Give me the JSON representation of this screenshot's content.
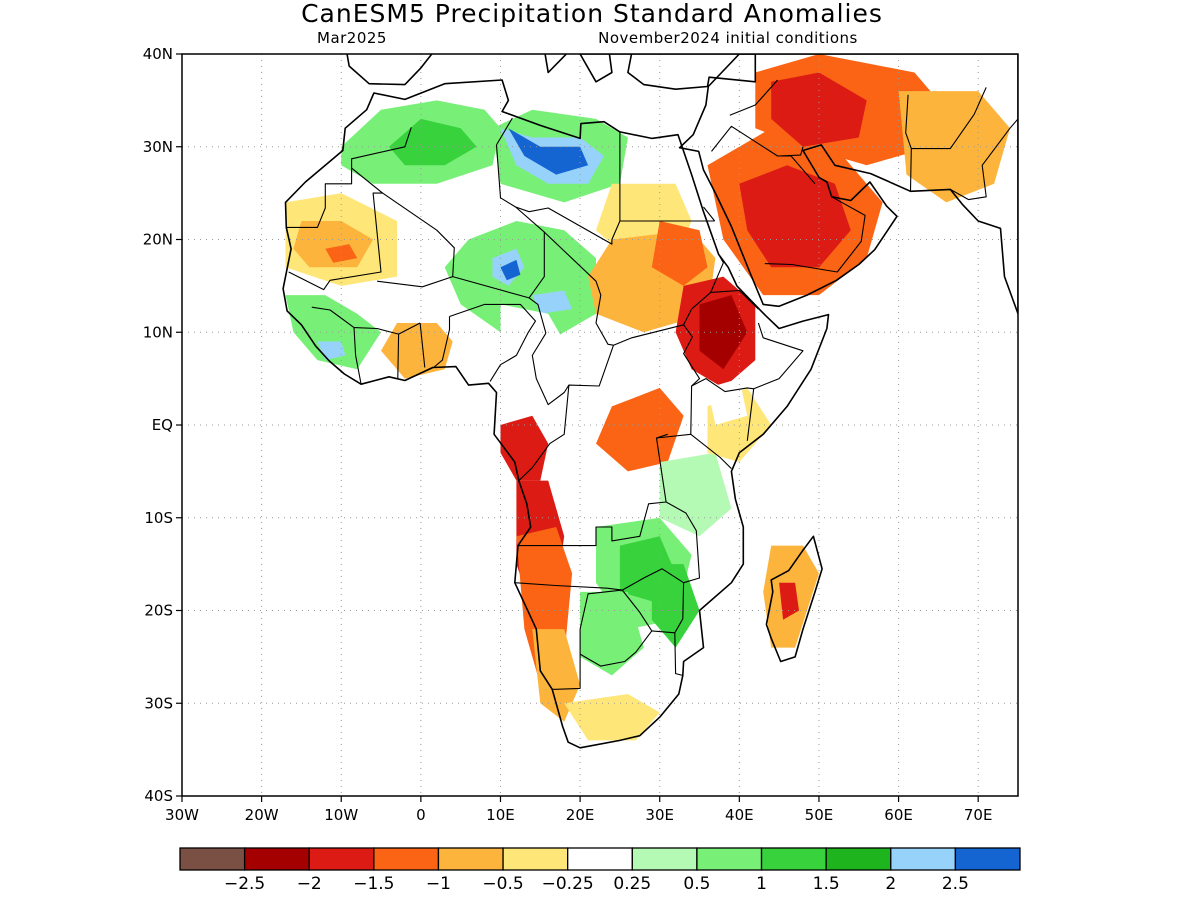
{
  "title": "CanESM5 Precipitation Standard Anomalies",
  "subtitle_left": "Mar2025",
  "subtitle_right": "November2024 initial conditions",
  "map": {
    "lon_range": [
      -30,
      75
    ],
    "lat_range": [
      -40,
      40
    ],
    "lon_ticks": [
      {
        "value": -30,
        "label": "30W"
      },
      {
        "value": -20,
        "label": "20W"
      },
      {
        "value": -10,
        "label": "10W"
      },
      {
        "value": 0,
        "label": "0"
      },
      {
        "value": 10,
        "label": "10E"
      },
      {
        "value": 20,
        "label": "20E"
      },
      {
        "value": 30,
        "label": "30E"
      },
      {
        "value": 40,
        "label": "40E"
      },
      {
        "value": 50,
        "label": "50E"
      },
      {
        "value": 60,
        "label": "60E"
      },
      {
        "value": 70,
        "label": "70E"
      }
    ],
    "lat_ticks": [
      {
        "value": 40,
        "label": "40N"
      },
      {
        "value": 30,
        "label": "30N"
      },
      {
        "value": 20,
        "label": "20N"
      },
      {
        "value": 10,
        "label": "10N"
      },
      {
        "value": 0,
        "label": "EQ"
      },
      {
        "value": -10,
        "label": "10S"
      },
      {
        "value": -20,
        "label": "20S"
      },
      {
        "value": -30,
        "label": "30S"
      },
      {
        "value": -40,
        "label": "40S"
      }
    ],
    "grid": true
  },
  "colorbar": {
    "colors": [
      "#7b5044",
      "#a50000",
      "#dc1c14",
      "#fa6414",
      "#fcb43c",
      "#ffe678",
      "#ffffff",
      "#b4fab4",
      "#78f078",
      "#37d23c",
      "#1eb41e",
      "#96d2fa",
      "#1464d2"
    ],
    "labels": [
      "-2.5",
      "-2",
      "-1.5",
      "-1",
      "-0.5",
      "-0.25",
      "0.25",
      "0.5",
      "1",
      "1.5",
      "2",
      "2.5"
    ]
  },
  "palette": {
    "deep_brown": "#7b5044",
    "dark_red": "#a50000",
    "red": "#dc1c14",
    "orange": "#fa6414",
    "light_orange": "#fcb43c",
    "yellow": "#ffe678",
    "white": "#ffffff",
    "light_green": "#b4fab4",
    "green": "#78f078",
    "mid_green": "#37d23c",
    "dark_green": "#1eb41e",
    "light_blue": "#96d2fa",
    "blue": "#1464d2"
  },
  "anomaly_regions": [
    {
      "name": "Morocco-Algeria",
      "level": "green",
      "coords": [
        [
          -10,
          30
        ],
        [
          -5,
          34
        ],
        [
          2,
          35
        ],
        [
          8,
          34
        ],
        [
          10,
          32
        ],
        [
          9,
          28
        ],
        [
          2,
          26
        ],
        [
          -6,
          26
        ],
        [
          -10,
          28
        ]
      ]
    },
    {
      "name": "Algeria-core",
      "level": "mid_green",
      "coords": [
        [
          -4,
          30
        ],
        [
          0,
          33
        ],
        [
          5,
          32
        ],
        [
          7,
          30
        ],
        [
          3,
          28
        ],
        [
          -2,
          28
        ]
      ]
    },
    {
      "name": "Libya-north",
      "level": "green",
      "coords": [
        [
          9,
          32
        ],
        [
          14,
          34
        ],
        [
          22,
          33
        ],
        [
          26,
          31
        ],
        [
          25,
          26
        ],
        [
          18,
          24
        ],
        [
          10,
          26
        ]
      ]
    },
    {
      "name": "Libya-blue",
      "level": "light_blue",
      "coords": [
        [
          10,
          32
        ],
        [
          14,
          31
        ],
        [
          20,
          31
        ],
        [
          23,
          29
        ],
        [
          21,
          26
        ],
        [
          16,
          26
        ],
        [
          12,
          28
        ]
      ]
    },
    {
      "name": "Libya-deepblue",
      "level": "blue",
      "coords": [
        [
          11,
          32
        ],
        [
          15,
          30
        ],
        [
          20,
          30
        ],
        [
          21,
          28
        ],
        [
          17,
          27
        ],
        [
          13,
          29
        ]
      ]
    },
    {
      "name": "Sahel-central-green",
      "level": "green",
      "coords": [
        [
          6,
          20
        ],
        [
          12,
          22
        ],
        [
          18,
          21
        ],
        [
          22,
          18
        ],
        [
          22,
          12
        ],
        [
          16,
          9
        ],
        [
          10,
          10
        ],
        [
          5,
          13
        ],
        [
          3,
          17
        ]
      ]
    },
    {
      "name": "Niger-blue",
      "level": "light_blue",
      "coords": [
        [
          9,
          18
        ],
        [
          12,
          19
        ],
        [
          13,
          17
        ],
        [
          11,
          15
        ],
        [
          9,
          16
        ]
      ]
    },
    {
      "name": "Niger-deepblue",
      "level": "blue",
      "coords": [
        [
          10,
          17
        ],
        [
          12,
          17.8
        ],
        [
          12.5,
          16.2
        ],
        [
          10.8,
          15.6
        ]
      ]
    },
    {
      "name": "Chad-blue",
      "level": "light_blue",
      "coords": [
        [
          14,
          14
        ],
        [
          18,
          14.5
        ],
        [
          19,
          12.5
        ],
        [
          15,
          12
        ]
      ]
    },
    {
      "name": "WestSahara-yellow",
      "level": "yellow",
      "coords": [
        [
          -17,
          24
        ],
        [
          -10,
          25
        ],
        [
          -3,
          22
        ],
        [
          -3,
          16
        ],
        [
          -10,
          15
        ],
        [
          -17,
          17
        ]
      ]
    },
    {
      "name": "Mauritania-orange",
      "level": "light_orange",
      "coords": [
        [
          -15,
          22
        ],
        [
          -10,
          22
        ],
        [
          -6,
          20
        ],
        [
          -8,
          17
        ],
        [
          -14,
          17
        ],
        [
          -16,
          19
        ]
      ]
    },
    {
      "name": "Mauritania-red",
      "level": "orange",
      "coords": [
        [
          -12,
          19
        ],
        [
          -9,
          19.5
        ],
        [
          -8,
          18
        ],
        [
          -11,
          17.5
        ]
      ]
    },
    {
      "name": "WestAfrica-green",
      "level": "green",
      "coords": [
        [
          -17,
          14
        ],
        [
          -12,
          14
        ],
        [
          -8,
          12
        ],
        [
          -5,
          10
        ],
        [
          -8,
          6
        ],
        [
          -13,
          7
        ],
        [
          -16,
          10
        ]
      ]
    },
    {
      "name": "SierraLeone-blue",
      "level": "light_blue",
      "coords": [
        [
          -13,
          9
        ],
        [
          -10,
          9
        ],
        [
          -9.5,
          7.5
        ],
        [
          -12,
          7
        ]
      ]
    },
    {
      "name": "Guinea-orange",
      "level": "light_orange",
      "coords": [
        [
          -3,
          11
        ],
        [
          2,
          11
        ],
        [
          4,
          9
        ],
        [
          3,
          6
        ],
        [
          -2,
          5
        ],
        [
          -5,
          8
        ]
      ]
    },
    {
      "name": "Egypt-Sudan-yellow",
      "level": "yellow",
      "coords": [
        [
          24,
          26
        ],
        [
          32,
          26
        ],
        [
          34,
          22
        ],
        [
          32,
          18
        ],
        [
          26,
          18
        ],
        [
          22,
          21
        ]
      ]
    },
    {
      "name": "Sudan-orange",
      "level": "light_orange",
      "coords": [
        [
          24,
          20
        ],
        [
          34,
          21
        ],
        [
          37,
          18
        ],
        [
          36,
          12
        ],
        [
          28,
          10
        ],
        [
          22,
          12
        ],
        [
          21,
          16
        ]
      ]
    },
    {
      "name": "EastSudan-orange",
      "level": "orange",
      "coords": [
        [
          30,
          22
        ],
        [
          35,
          21
        ],
        [
          36,
          17
        ],
        [
          33,
          15
        ],
        [
          29,
          17
        ]
      ]
    },
    {
      "name": "Ethiopia-red",
      "level": "red",
      "coords": [
        [
          33,
          15
        ],
        [
          38,
          16
        ],
        [
          42,
          13
        ],
        [
          42,
          7
        ],
        [
          38,
          4
        ],
        [
          34,
          6
        ],
        [
          32,
          10
        ]
      ]
    },
    {
      "name": "Ethiopia-darkred",
      "level": "dark_red",
      "coords": [
        [
          35,
          13
        ],
        [
          39,
          14
        ],
        [
          41,
          10
        ],
        [
          38,
          6
        ],
        [
          35,
          8
        ]
      ]
    },
    {
      "name": "Arabia-orange",
      "level": "orange",
      "coords": [
        [
          36,
          28
        ],
        [
          44,
          32
        ],
        [
          52,
          30
        ],
        [
          58,
          24
        ],
        [
          56,
          18
        ],
        [
          50,
          14
        ],
        [
          43,
          14
        ],
        [
          38,
          20
        ]
      ]
    },
    {
      "name": "Arabia-red",
      "level": "red",
      "coords": [
        [
          40,
          26
        ],
        [
          46,
          28
        ],
        [
          52,
          26
        ],
        [
          54,
          21
        ],
        [
          50,
          17
        ],
        [
          44,
          17
        ],
        [
          41,
          21
        ]
      ]
    },
    {
      "name": "Iraq-Iran-orange",
      "level": "orange",
      "coords": [
        [
          42,
          38
        ],
        [
          50,
          40
        ],
        [
          62,
          38
        ],
        [
          66,
          34
        ],
        [
          64,
          30
        ],
        [
          56,
          28
        ],
        [
          48,
          30
        ],
        [
          42,
          32
        ]
      ]
    },
    {
      "name": "Iraq-red",
      "level": "red",
      "coords": [
        [
          44,
          37
        ],
        [
          50,
          38
        ],
        [
          56,
          35
        ],
        [
          55,
          31
        ],
        [
          48,
          30
        ],
        [
          44,
          33
        ]
      ]
    },
    {
      "name": "Pakistan-orange",
      "level": "light_orange",
      "coords": [
        [
          60,
          36
        ],
        [
          70,
          36
        ],
        [
          74,
          32
        ],
        [
          72,
          26
        ],
        [
          66,
          24
        ],
        [
          61,
          27
        ]
      ]
    },
    {
      "name": "Congo-Basin-red",
      "level": "orange",
      "coords": [
        [
          24,
          2
        ],
        [
          30,
          4
        ],
        [
          33,
          1
        ],
        [
          31,
          -4
        ],
        [
          26,
          -5
        ],
        [
          22,
          -2
        ]
      ]
    },
    {
      "name": "Gabon-red",
      "level": "red",
      "coords": [
        [
          10,
          0
        ],
        [
          14,
          1
        ],
        [
          16,
          -2
        ],
        [
          15,
          -6
        ],
        [
          12,
          -6
        ],
        [
          10,
          -3
        ]
      ]
    },
    {
      "name": "Angola-red",
      "level": "red",
      "coords": [
        [
          12,
          -6
        ],
        [
          16,
          -6
        ],
        [
          18,
          -12
        ],
        [
          17,
          -18
        ],
        [
          14,
          -20
        ],
        [
          12,
          -15
        ]
      ]
    },
    {
      "name": "Angola-orange",
      "level": "orange",
      "coords": [
        [
          12,
          -12
        ],
        [
          17,
          -11
        ],
        [
          19,
          -16
        ],
        [
          18,
          -25
        ],
        [
          15,
          -28
        ],
        [
          13,
          -22
        ]
      ]
    },
    {
      "name": "Namibia-orange",
      "level": "light_orange",
      "coords": [
        [
          14,
          -22
        ],
        [
          18,
          -22
        ],
        [
          20,
          -28
        ],
        [
          18,
          -32
        ],
        [
          15,
          -30
        ]
      ]
    },
    {
      "name": "Zambia-green",
      "level": "green",
      "coords": [
        [
          22,
          -11
        ],
        [
          30,
          -10
        ],
        [
          34,
          -14
        ],
        [
          32,
          -21
        ],
        [
          26,
          -22
        ],
        [
          22,
          -17
        ]
      ]
    },
    {
      "name": "Zambia-midgreen",
      "level": "mid_green",
      "coords": [
        [
          25,
          -13
        ],
        [
          30,
          -12
        ],
        [
          32,
          -16
        ],
        [
          29,
          -19
        ],
        [
          25,
          -18
        ]
      ]
    },
    {
      "name": "Mozambique-green",
      "level": "mid_green",
      "coords": [
        [
          29,
          -15
        ],
        [
          33,
          -15
        ],
        [
          35,
          -20
        ],
        [
          32,
          -24
        ],
        [
          29,
          -21
        ]
      ]
    },
    {
      "name": "Tanzania-green",
      "level": "light_green",
      "coords": [
        [
          30,
          -4
        ],
        [
          37,
          -3
        ],
        [
          39,
          -9
        ],
        [
          35,
          -12
        ],
        [
          30,
          -10
        ]
      ]
    },
    {
      "name": "Botswana-green",
      "level": "green",
      "coords": [
        [
          20,
          -18
        ],
        [
          26,
          -18
        ],
        [
          28,
          -24
        ],
        [
          24,
          -27
        ],
        [
          20,
          -25
        ]
      ]
    },
    {
      "name": "SouthAfrica-yellow",
      "level": "yellow",
      "coords": [
        [
          18,
          -30
        ],
        [
          26,
          -29
        ],
        [
          30,
          -31
        ],
        [
          27,
          -34
        ],
        [
          21,
          -34
        ]
      ]
    },
    {
      "name": "EastAfrica-yellow",
      "level": "yellow",
      "coords": [
        [
          36,
          2
        ],
        [
          41,
          4
        ],
        [
          44,
          0
        ],
        [
          40,
          -4
        ],
        [
          36,
          -3
        ]
      ]
    },
    {
      "name": "Madagascar-orange",
      "level": "light_orange",
      "coords": [
        [
          44,
          -13
        ],
        [
          48,
          -13
        ],
        [
          50,
          -16
        ],
        [
          47,
          -24
        ],
        [
          44,
          -24
        ],
        [
          43,
          -18
        ]
      ]
    },
    {
      "name": "Madagascar-red",
      "level": "red",
      "coords": [
        [
          45,
          -17
        ],
        [
          47,
          -17
        ],
        [
          47.5,
          -20
        ],
        [
          45.5,
          -21
        ]
      ]
    },
    {
      "name": "Chad-Nigeria-white",
      "level": "white",
      "coords": [
        [
          10,
          13
        ],
        [
          16,
          12
        ],
        [
          18,
          9
        ],
        [
          14,
          7
        ],
        [
          10,
          9
        ]
      ]
    },
    {
      "name": "Kenya-white",
      "level": "white",
      "coords": [
        [
          36,
          4
        ],
        [
          40,
          5
        ],
        [
          41,
          1
        ],
        [
          37,
          0
        ]
      ]
    }
  ]
}
